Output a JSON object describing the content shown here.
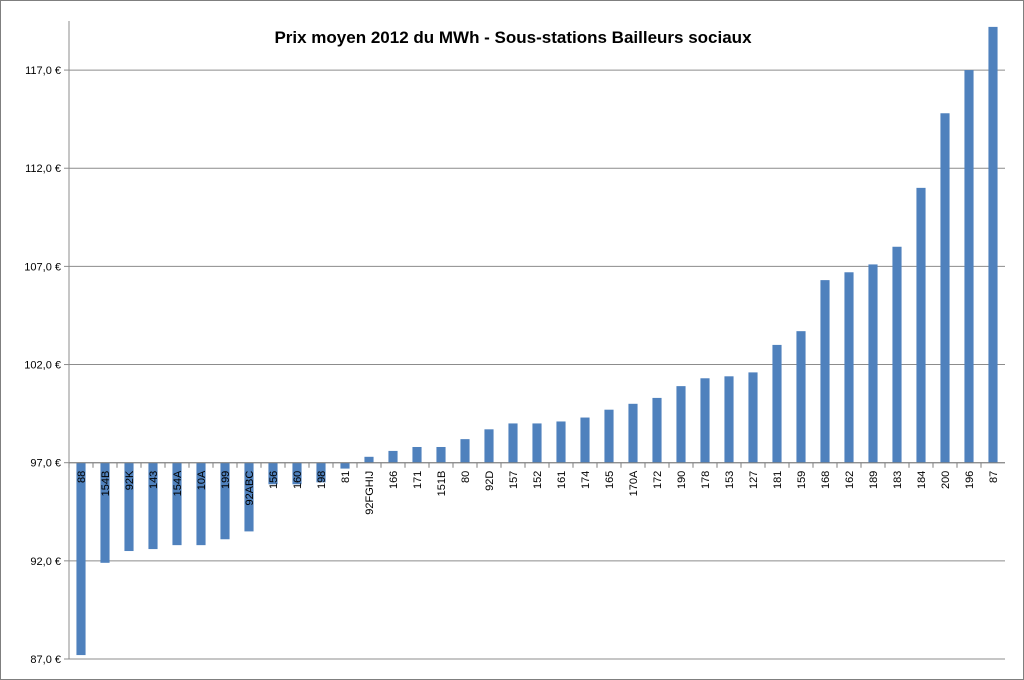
{
  "chart_data": {
    "type": "bar",
    "title": "Prix moyen 2012 du MWh - Sous-stations Bailleurs sociaux",
    "xlabel": "",
    "ylabel": "",
    "ylim": [
      87,
      119.5
    ],
    "baseline": 97,
    "y_ticks": [
      "87,0 €",
      "92,0 €",
      "97,0 €",
      "102,0 €",
      "107,0 €",
      "112,0 €",
      "117,0 €"
    ],
    "y_tick_values": [
      87,
      92,
      97,
      102,
      107,
      112,
      117
    ],
    "grid": true,
    "bar_color": "#4f81bd",
    "categories": [
      "88",
      "154B",
      "92K",
      "143",
      "154A",
      "10A",
      "199",
      "92ABC",
      "156",
      "160",
      "198",
      "81",
      "92FGHIJ",
      "166",
      "171",
      "151B",
      "80",
      "92D",
      "157",
      "152",
      "161",
      "174",
      "165",
      "170A",
      "172",
      "190",
      "178",
      "153",
      "127",
      "181",
      "159",
      "168",
      "162",
      "189",
      "183",
      "184",
      "200",
      "196",
      "87"
    ],
    "values": [
      87.2,
      91.9,
      92.5,
      92.6,
      92.8,
      92.8,
      93.1,
      93.5,
      95.9,
      95.9,
      96.0,
      96.7,
      97.3,
      97.6,
      97.8,
      97.8,
      98.2,
      98.7,
      99.0,
      99.0,
      99.1,
      99.3,
      99.7,
      100.0,
      100.3,
      100.9,
      101.3,
      101.4,
      101.6,
      103.0,
      103.7,
      106.3,
      106.7,
      107.1,
      108.0,
      111.0,
      114.8,
      117.0,
      119.2
    ]
  }
}
